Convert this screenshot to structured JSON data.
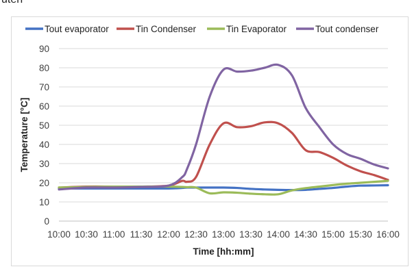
{
  "top_fragment": "uten",
  "chart_data": {
    "type": "line",
    "xlabel": "Time [hh:mm]",
    "ylabel": "Temperature [°C]",
    "ylim": [
      0,
      90
    ],
    "y_ticks": [
      0,
      10,
      20,
      30,
      40,
      50,
      60,
      70,
      80,
      90
    ],
    "xlim": [
      "10:00",
      "16:00"
    ],
    "x_tick_labels": [
      "10:00",
      "10:30",
      "11:00",
      "11:30",
      "12:00",
      "12:30",
      "13:00",
      "13:30",
      "14:00",
      "14:30",
      "15:00",
      "15:30",
      "16:00"
    ],
    "grid": "horizontal",
    "legend_position": "top",
    "x": [
      "10:00",
      "10:30",
      "11:00",
      "11:30",
      "12:00",
      "12:15",
      "12:20",
      "12:30",
      "12:45",
      "13:00",
      "13:15",
      "13:30",
      "13:45",
      "14:00",
      "14:15",
      "14:30",
      "14:45",
      "15:00",
      "15:15",
      "15:30",
      "15:45",
      "16:00"
    ],
    "series": [
      {
        "name": "Tout evaporator",
        "color": "#4472C4",
        "values": [
          17,
          17,
          17,
          17,
          17,
          17.3,
          17.5,
          17.5,
          17.5,
          17.5,
          17.3,
          16.8,
          16.5,
          16.3,
          16.2,
          16.3,
          16.8,
          17.3,
          18,
          18.5,
          18.6,
          18.7
        ]
      },
      {
        "name": "Tin Condenser",
        "color": "#C0504D",
        "values": [
          17.5,
          18,
          18,
          18,
          18.5,
          21,
          20.5,
          23,
          40,
          51,
          49,
          49.5,
          51.5,
          51,
          46,
          37,
          36,
          33,
          29,
          26,
          24,
          21.5
        ]
      },
      {
        "name": "Tin Evaporator",
        "color": "#9BBB59",
        "values": [
          17.5,
          17.8,
          18,
          18,
          18,
          17.8,
          17.7,
          17.5,
          14.5,
          15,
          14.8,
          14.3,
          14,
          14,
          16,
          17.2,
          18,
          18.8,
          19.5,
          20,
          20.5,
          21
        ]
      },
      {
        "name": "Tout condenser",
        "color": "#8064A2",
        "values": [
          16.5,
          17.5,
          17.5,
          17.8,
          18.5,
          23,
          27,
          40,
          65,
          79,
          78,
          78.5,
          80,
          81.5,
          76,
          59,
          49,
          40,
          35,
          32.5,
          29.5,
          27.5
        ]
      }
    ]
  }
}
